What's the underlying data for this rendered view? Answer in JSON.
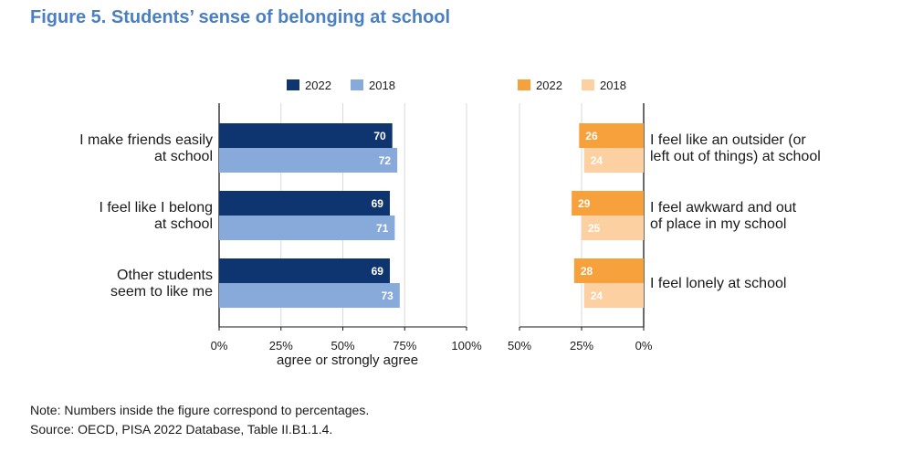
{
  "title": "Figure 5. Students’ sense of belonging at school",
  "note": "Note: Numbers inside the figure correspond to percentages.",
  "source": "Source: OECD, PISA 2022 Database, Table II.B1.1.4.",
  "colors": {
    "left_2022": "#0f3570",
    "left_2018": "#87aadb",
    "right_2022": "#f7a13d",
    "right_2018": "#fcd0a0",
    "grid": "#d9d9d9",
    "axis": "#1a1a1a"
  },
  "chart_data": [
    {
      "type": "bar",
      "orientation": "horizontal",
      "categories": [
        "I make friends easily at school",
        "I feel like I belong at school",
        "Other students seem to like me"
      ],
      "category_lines": [
        [
          "I make friends easily",
          "at school"
        ],
        [
          "I feel like I belong",
          "at school"
        ],
        [
          "Other students",
          "seem to like me"
        ]
      ],
      "series": [
        {
          "name": "2022",
          "values": [
            70,
            69,
            69
          ]
        },
        {
          "name": "2018",
          "values": [
            72,
            71,
            73
          ]
        }
      ],
      "xlim": [
        0,
        100
      ],
      "xticks": [
        0,
        25,
        50,
        75,
        100
      ],
      "xtick_labels": [
        "0%",
        "25%",
        "50%",
        "75%",
        "100%"
      ],
      "xlabel": "agree or strongly agree",
      "legend_position": "top",
      "grid": true
    },
    {
      "type": "bar",
      "orientation": "horizontal",
      "reversed_axis": true,
      "categories": [
        "I feel like an outsider (or left out of things) at school",
        "I feel awkward and out of place in my school",
        "I feel lonely at school"
      ],
      "category_lines": [
        [
          "I feel like an outsider (or",
          "left out of things) at school"
        ],
        [
          "I feel awkward and out",
          "of place in my school"
        ],
        [
          "I feel lonely at school"
        ]
      ],
      "series": [
        {
          "name": "2022",
          "values": [
            26,
            29,
            28
          ]
        },
        {
          "name": "2018",
          "values": [
            24,
            25,
            24
          ]
        }
      ],
      "xlim": [
        0,
        50
      ],
      "xticks": [
        50,
        25,
        0
      ],
      "xtick_labels": [
        "50%",
        "25%",
        "0%"
      ],
      "xlabel": "",
      "legend_position": "top",
      "grid": true
    }
  ]
}
